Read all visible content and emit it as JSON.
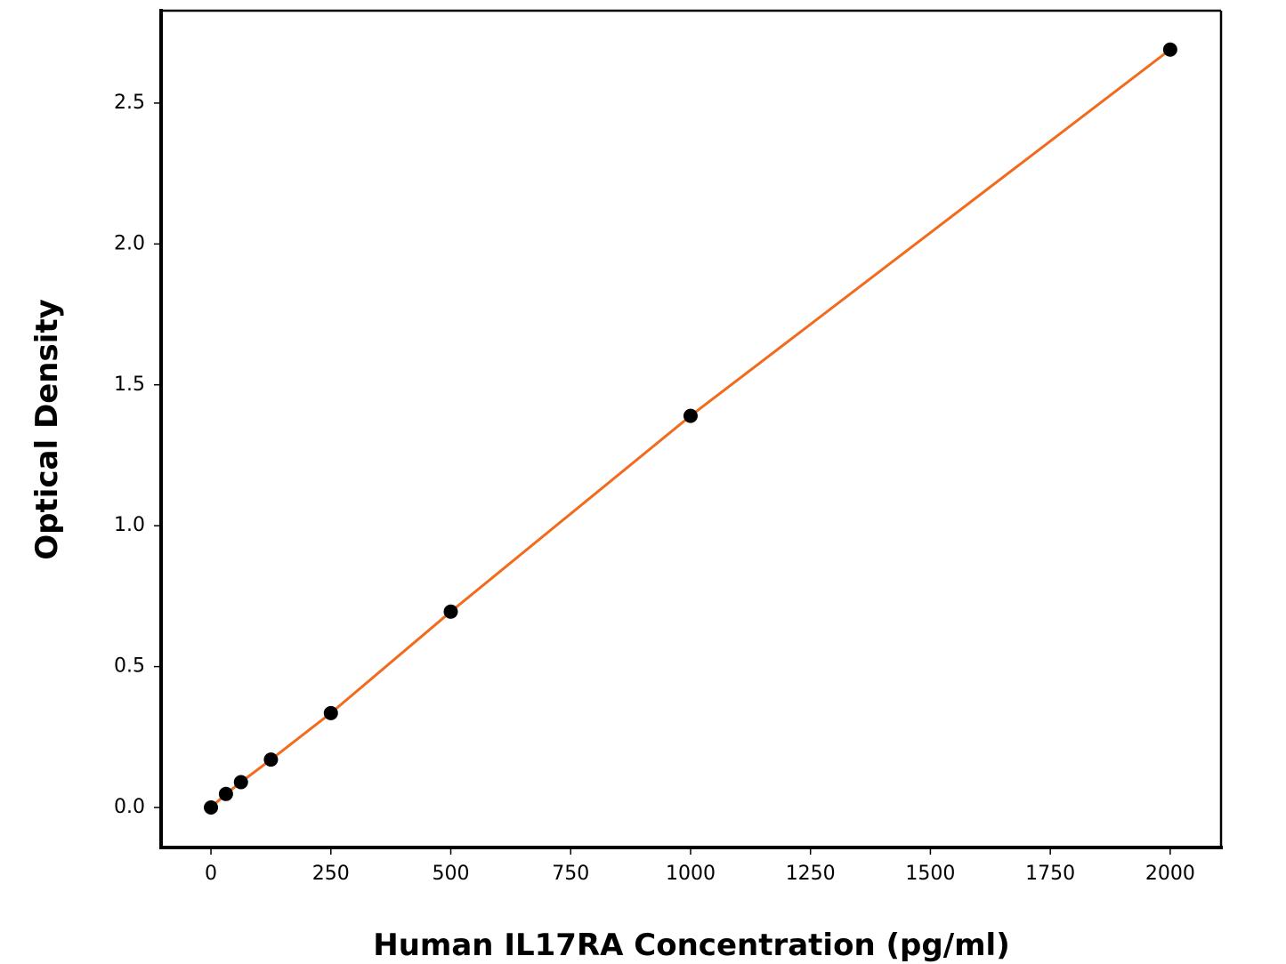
{
  "chart_data": {
    "type": "scatter",
    "xlabel": "Human IL17RA Concentration (pg/ml)",
    "ylabel": "Optical Density",
    "x": [
      0,
      31.25,
      62.5,
      125,
      250,
      500,
      1000,
      2000
    ],
    "series": [
      {
        "color": "#000000",
        "values": [
          0,
          0.048,
          0.09,
          0.17,
          0.335,
          0.695,
          1.39,
          2.69
        ]
      }
    ],
    "line_color": "#f26b1d",
    "xlim": [
      -104,
      2106
    ],
    "ylim": [
      -0.142,
      2.828
    ],
    "xticks": [
      0,
      250,
      500,
      750,
      1000,
      1250,
      1500,
      1750,
      2000
    ],
    "yticks": [
      {
        "value": 0,
        "label": "0.0"
      },
      {
        "value": 0.5,
        "label": "0.5"
      },
      {
        "value": 1,
        "label": "1.0"
      },
      {
        "value": 1.5,
        "label": "1.5"
      },
      {
        "value": 2,
        "label": "2.0"
      },
      {
        "value": 2.5,
        "label": "2.5"
      }
    ],
    "grid": false
  }
}
